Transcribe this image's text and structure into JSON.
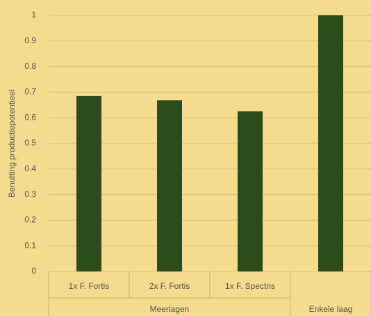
{
  "chart_data": {
    "type": "bar",
    "y_label": "Benutting productiepotentieel",
    "color": "#2b4d1c",
    "groups": [
      {
        "label": "Meerlagen",
        "categories": [
          "1x F. Fortis",
          "2x F. Fortis",
          "1x F. Spectris"
        ],
        "values": [
          0.685,
          0.668,
          0.625
        ]
      },
      {
        "label": "Enkele laag",
        "categories": [
          null
        ],
        "values": [
          1
        ]
      }
    ],
    "ylim": [
      0,
      1
    ],
    "yticks": [
      0,
      0.1,
      0.2,
      0.3,
      0.4,
      0.5,
      0.6,
      0.7,
      0.8,
      0.9,
      1
    ],
    "grid": true
  }
}
